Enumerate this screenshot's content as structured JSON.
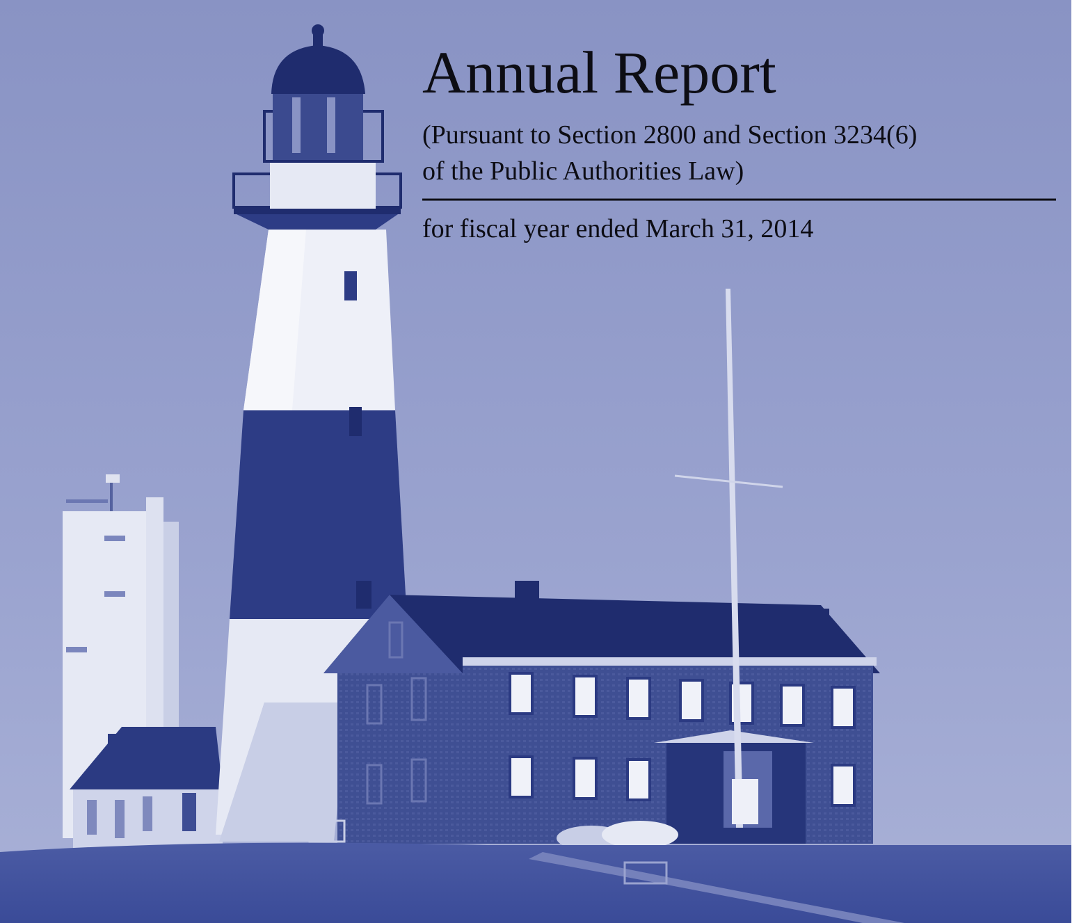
{
  "header": {
    "title": "Annual Report",
    "subtitle_lines": [
      "(Pursuant to Section 2800 and Section 3234(6)",
      "of the Public Authorities Law)"
    ],
    "fiscal_year": "for fiscal year ended March 31, 2014"
  }
}
